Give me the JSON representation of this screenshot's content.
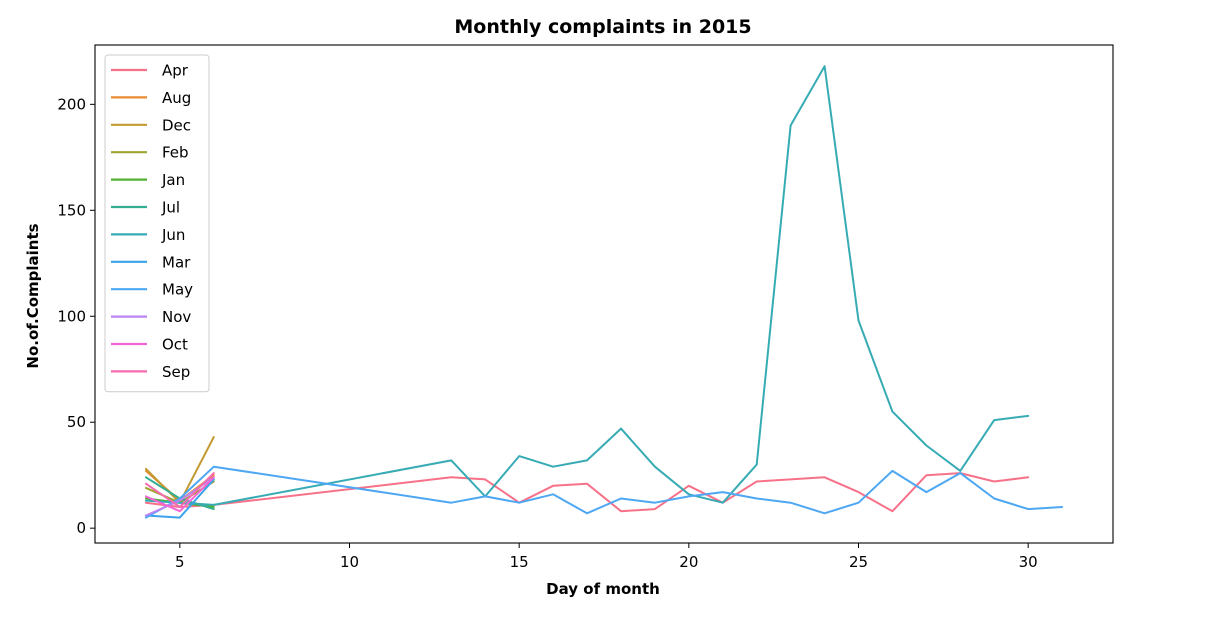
{
  "chart_data": {
    "type": "line",
    "title": "Monthly complaints in 2015",
    "xlabel": "Day of month",
    "ylabel": "No.of.Complaints",
    "xlim": [
      2.5,
      32.5
    ],
    "ylim": [
      -7,
      228
    ],
    "xticks": [
      5,
      10,
      15,
      20,
      25,
      30
    ],
    "yticks": [
      0,
      50,
      100,
      150,
      200
    ],
    "grid": false,
    "legend_position": "top-left",
    "series": [
      {
        "name": "Apr",
        "color": "#f77189",
        "x": [
          4,
          5,
          6,
          13,
          14,
          15,
          16,
          17,
          18,
          19,
          20,
          21,
          22,
          24,
          25,
          26,
          27,
          28,
          29,
          30
        ],
        "y": [
          12,
          10,
          11,
          24,
          23,
          12,
          20,
          21,
          8,
          9,
          20,
          12,
          22,
          24,
          17,
          8,
          25,
          26,
          22,
          24
        ]
      },
      {
        "name": "Aug",
        "color": "#e88c30",
        "x": [
          4,
          5,
          6
        ],
        "y": [
          27,
          13,
          25
        ]
      },
      {
        "name": "Dec",
        "color": "#c29a31",
        "x": [
          4,
          5,
          6
        ],
        "y": [
          28,
          12,
          43
        ]
      },
      {
        "name": "Feb",
        "color": "#9ea431",
        "x": [
          4,
          5,
          6
        ],
        "y": [
          19,
          12,
          22
        ]
      },
      {
        "name": "Jan",
        "color": "#50b131",
        "x": [
          4,
          5,
          6
        ],
        "y": [
          14,
          12,
          10
        ]
      },
      {
        "name": "Jul",
        "color": "#34ae91",
        "x": [
          4,
          5,
          6
        ],
        "y": [
          24,
          14,
          9
        ]
      },
      {
        "name": "Jun",
        "color": "#37abb4",
        "x": [
          4,
          5,
          6,
          13,
          14,
          15,
          16,
          17,
          18,
          19,
          20,
          21,
          22,
          23,
          24,
          25,
          26,
          27,
          28,
          29,
          30
        ],
        "y": [
          13,
          12,
          11,
          32,
          15,
          34,
          29,
          32,
          47,
          29,
          16,
          12,
          30,
          190,
          218,
          98,
          55,
          39,
          27,
          51,
          53
        ]
      },
      {
        "name": "Mar",
        "color": "#3ba3ec",
        "x": [
          4,
          5,
          6
        ],
        "y": [
          6,
          5,
          23
        ]
      },
      {
        "name": "May",
        "color": "#4da7f3",
        "x": [
          4,
          5,
          6,
          13,
          14,
          15,
          16,
          17,
          18,
          19,
          20,
          21,
          22,
          23,
          24,
          25,
          26,
          27,
          28,
          29,
          30,
          31
        ],
        "y": [
          5,
          14,
          29,
          12,
          15,
          12,
          16,
          7,
          14,
          12,
          15,
          17,
          14,
          12,
          7,
          12,
          27,
          17,
          26,
          14,
          9,
          10
        ]
      },
      {
        "name": "Nov",
        "color": "#bb83f4",
        "x": [
          4,
          5,
          6
        ],
        "y": [
          6,
          13,
          24
        ]
      },
      {
        "name": "Oct",
        "color": "#f564d4",
        "x": [
          4,
          5,
          6
        ],
        "y": [
          15,
          8,
          24
        ]
      },
      {
        "name": "Sep",
        "color": "#f66bb0",
        "x": [
          4,
          5,
          6
        ],
        "y": [
          21,
          10,
          26
        ]
      }
    ]
  }
}
